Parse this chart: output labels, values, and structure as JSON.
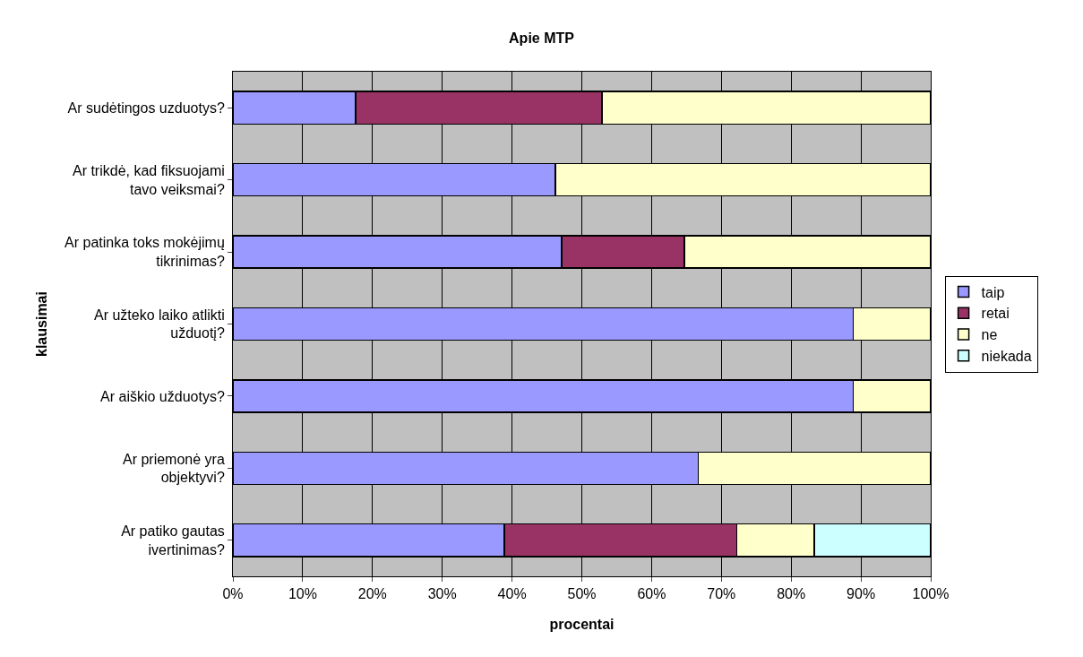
{
  "chart_data": {
    "type": "bar",
    "orientation": "horizontal",
    "stacked": true,
    "title": "Apie MTP",
    "xlabel": "procentai",
    "ylabel": "klausimai",
    "categories": [
      "Ar sudėtingos uzduotys?",
      "Ar trikdė, kad fiksuojami\ntavo veiksmai?",
      "Ar patinka toks mokėjimų\ntikrinimas?",
      "Ar užteko laiko atlikti\nužduotį?",
      "Ar aiškio užduotys?",
      "Ar priemonė yra\nobjektyvi?",
      "Ar patiko gautas\nivertinimas?"
    ],
    "series": [
      {
        "name": "taip",
        "color": "#9999ff",
        "values": [
          17.6,
          46.2,
          47.1,
          88.9,
          88.9,
          66.7,
          38.9
        ]
      },
      {
        "name": "retai",
        "color": "#993366",
        "values": [
          35.3,
          null,
          17.6,
          null,
          null,
          null,
          33.3
        ]
      },
      {
        "name": "ne",
        "color": "#ffffcc",
        "values": [
          47.1,
          53.8,
          35.3,
          11.1,
          11.1,
          33.3,
          11.1
        ]
      },
      {
        "name": "niekada",
        "color": "#ccffff",
        "values": [
          null,
          null,
          null,
          null,
          null,
          null,
          16.7
        ]
      }
    ],
    "xlim": [
      0,
      100
    ],
    "xticks": [
      {
        "value": 0,
        "label": "0%"
      },
      {
        "value": 10,
        "label": "10%"
      },
      {
        "value": 20,
        "label": "20%"
      },
      {
        "value": 30,
        "label": "30%"
      },
      {
        "value": 40,
        "label": "40%"
      },
      {
        "value": 50,
        "label": "50%"
      },
      {
        "value": 60,
        "label": "60%"
      },
      {
        "value": 70,
        "label": "70%"
      },
      {
        "value": 80,
        "label": "80%"
      },
      {
        "value": 90,
        "label": "90%"
      },
      {
        "value": 100,
        "label": "100%"
      }
    ],
    "grid": "x",
    "legend": "right"
  }
}
